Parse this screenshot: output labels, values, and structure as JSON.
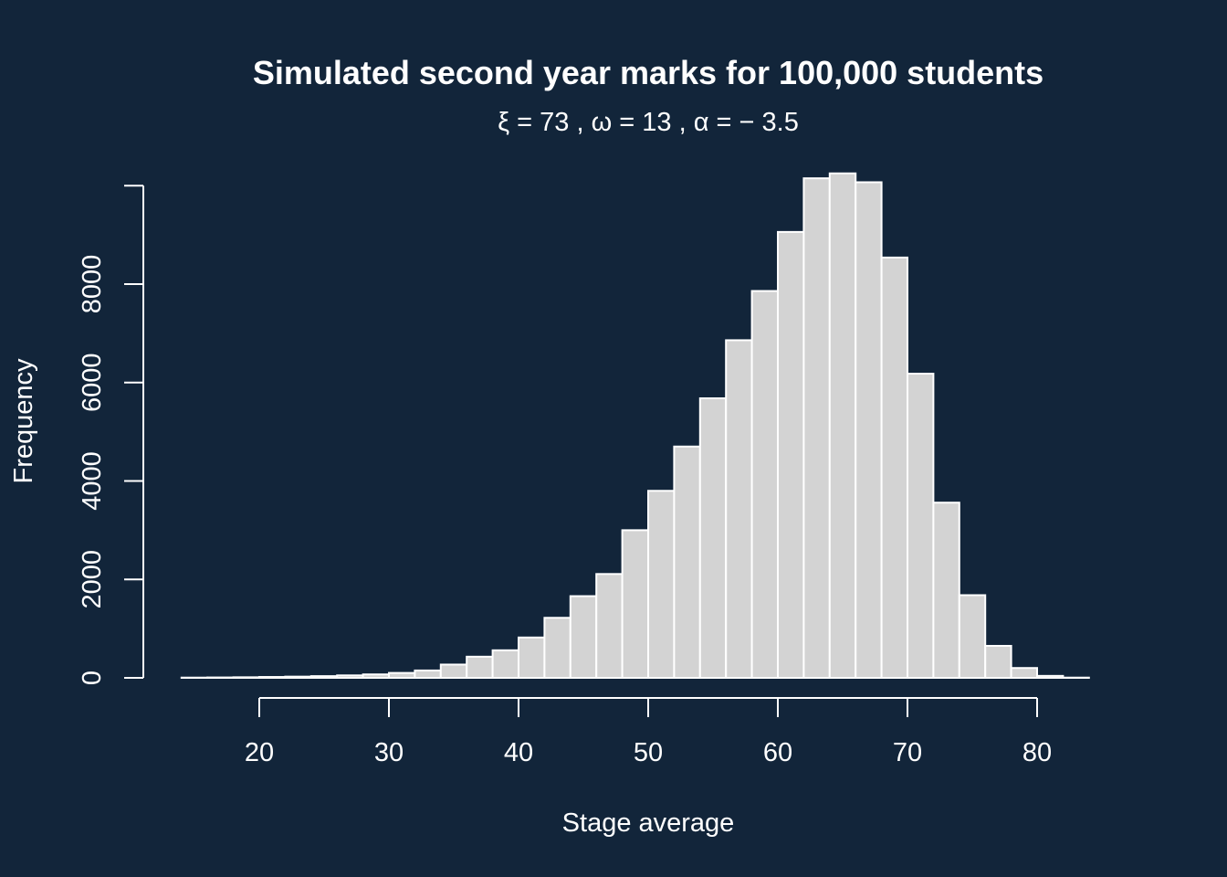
{
  "colors": {
    "background": "#12253a",
    "bar_fill": "#d3d3d3",
    "bar_border": "#ffffff",
    "text": "#ffffff"
  },
  "chart_data": {
    "type": "bar",
    "title": "Simulated second year marks for 100,000 students",
    "subtitle": "ξ = 73 ,  ω = 13 ,  α = − 3.5",
    "xlabel": "Stage average",
    "ylabel": "Frequency",
    "xlim": [
      14,
      86
    ],
    "ylim": [
      0,
      10050
    ],
    "xticks": [
      20,
      30,
      40,
      50,
      60,
      70,
      80
    ],
    "yticks": [
      0,
      2000,
      4000,
      6000,
      8000
    ],
    "bin_width": 2,
    "bin_edges_start": 14,
    "values": [
      5,
      8,
      12,
      18,
      25,
      35,
      50,
      70,
      100,
      150,
      270,
      430,
      560,
      820,
      1220,
      1660,
      2110,
      3000,
      3800,
      4700,
      5680,
      6860,
      7860,
      9060,
      10150,
      10250,
      10070,
      8540,
      6180,
      3560,
      1680,
      650,
      200,
      40,
      5
    ]
  }
}
